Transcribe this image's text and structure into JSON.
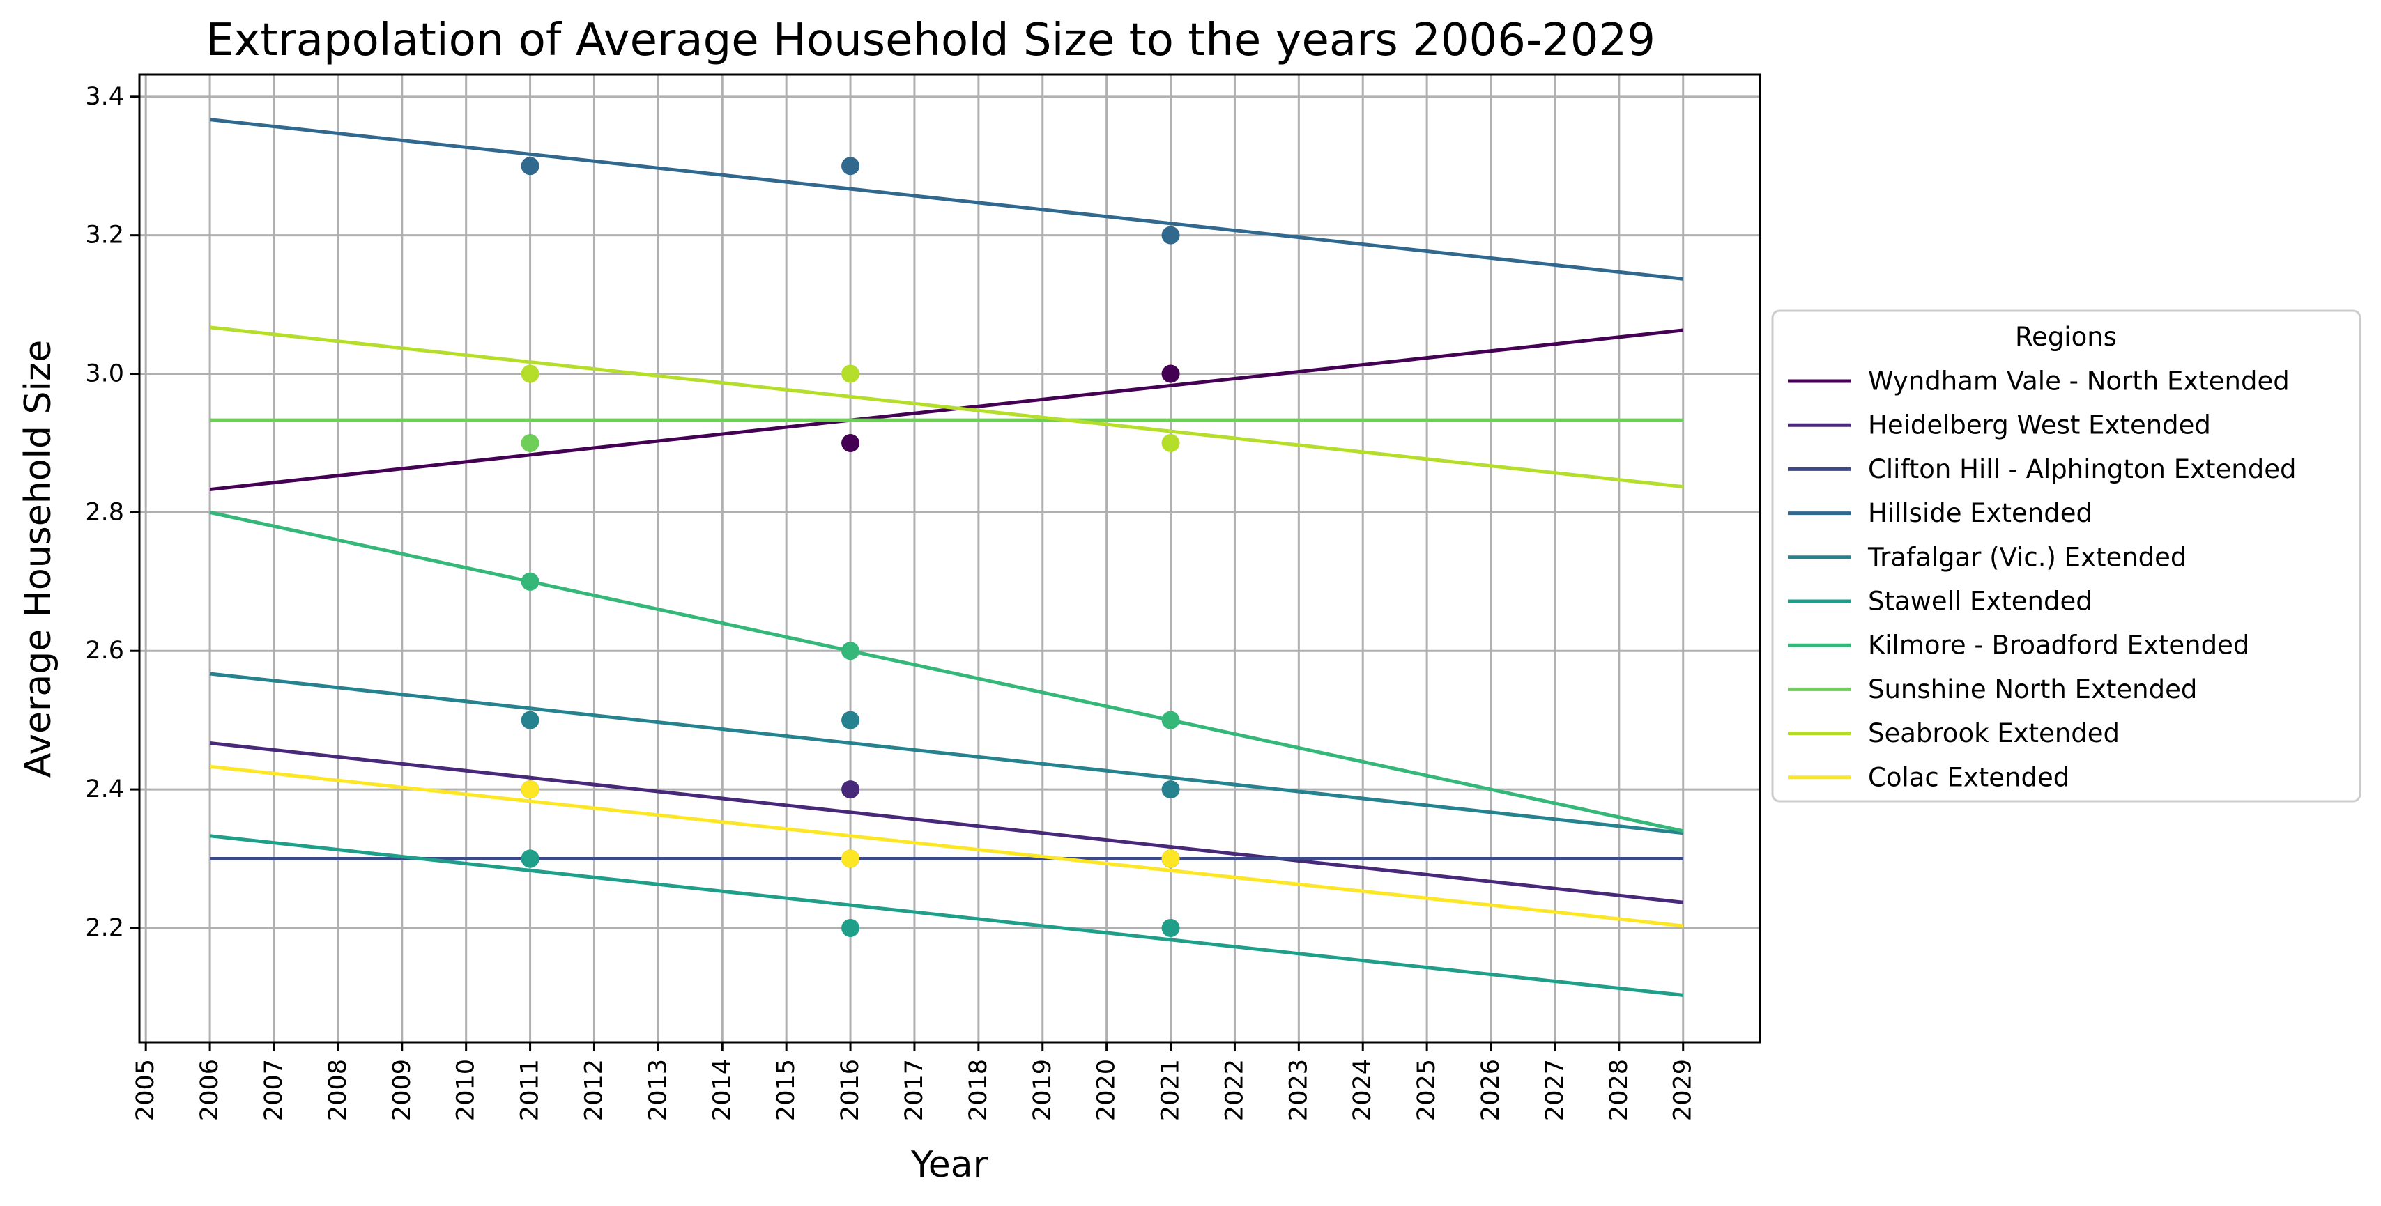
{
  "chart_data": {
    "type": "line",
    "title": "Extrapolation of Average Household Size to the years 2006-2029",
    "xlabel": "Year",
    "ylabel": "Average Household Size",
    "xlim": [
      2004.9,
      2030.2
    ],
    "ylim": [
      2.035,
      3.432
    ],
    "x_ticks": [
      2005,
      2006,
      2007,
      2008,
      2009,
      2010,
      2011,
      2012,
      2013,
      2014,
      2015,
      2016,
      2017,
      2018,
      2019,
      2020,
      2021,
      2022,
      2023,
      2024,
      2025,
      2026,
      2027,
      2028,
      2029
    ],
    "y_ticks": [
      2.2,
      2.4,
      2.6,
      2.8,
      3.0,
      3.2,
      3.4
    ],
    "grid": true,
    "legend": {
      "title": "Regions",
      "placement": "outside-right"
    },
    "series": [
      {
        "name": "Wyndham Vale - North Extended",
        "color": "#440154",
        "line": [
          [
            2006,
            2.833
          ],
          [
            2029,
            3.063
          ]
        ],
        "points": [
          [
            2016,
            2.9
          ],
          [
            2021,
            3.0
          ]
        ]
      },
      {
        "name": "Heidelberg West Extended",
        "color": "#482878",
        "line": [
          [
            2006,
            2.467
          ],
          [
            2029,
            2.237
          ]
        ],
        "points": [
          [
            2011,
            2.4
          ],
          [
            2016,
            2.4
          ],
          [
            2021,
            2.3
          ]
        ]
      },
      {
        "name": "Clifton Hill - Alphington Extended",
        "color": "#3e4989",
        "line": [
          [
            2006,
            2.3
          ],
          [
            2029,
            2.3
          ]
        ],
        "points": [
          [
            2011,
            2.3
          ],
          [
            2016,
            2.3
          ],
          [
            2021,
            2.3
          ]
        ]
      },
      {
        "name": "Hillside Extended",
        "color": "#31688e",
        "line": [
          [
            2006,
            3.367
          ],
          [
            2029,
            3.137
          ]
        ],
        "points": [
          [
            2011,
            3.3
          ],
          [
            2016,
            3.3
          ],
          [
            2021,
            3.2
          ]
        ]
      },
      {
        "name": "Trafalgar (Vic.) Extended",
        "color": "#26828e",
        "line": [
          [
            2006,
            2.567
          ],
          [
            2029,
            2.337
          ]
        ],
        "points": [
          [
            2011,
            2.5
          ],
          [
            2016,
            2.5
          ],
          [
            2021,
            2.4
          ]
        ]
      },
      {
        "name": "Stawell Extended",
        "color": "#1f9e89",
        "line": [
          [
            2006,
            2.333
          ],
          [
            2029,
            2.103
          ]
        ],
        "points": [
          [
            2011,
            2.3
          ],
          [
            2016,
            2.2
          ],
          [
            2021,
            2.2
          ]
        ]
      },
      {
        "name": "Kilmore - Broadford Extended",
        "color": "#35b779",
        "line": [
          [
            2006,
            2.8
          ],
          [
            2029,
            2.34
          ]
        ],
        "points": [
          [
            2011,
            2.7
          ],
          [
            2016,
            2.6
          ],
          [
            2021,
            2.5
          ]
        ]
      },
      {
        "name": "Sunshine North Extended",
        "color": "#6ece58",
        "line": [
          [
            2006,
            2.933
          ],
          [
            2029,
            2.933
          ]
        ],
        "points": [
          [
            2011,
            2.9
          ]
        ]
      },
      {
        "name": "Seabrook Extended",
        "color": "#b5de2b",
        "line": [
          [
            2006,
            3.067
          ],
          [
            2029,
            2.837
          ]
        ],
        "points": [
          [
            2011,
            3.0
          ],
          [
            2016,
            3.0
          ],
          [
            2021,
            2.9
          ]
        ]
      },
      {
        "name": "Colac Extended",
        "color": "#fde725",
        "line": [
          [
            2006,
            2.433
          ],
          [
            2029,
            2.203
          ]
        ],
        "points": [
          [
            2011,
            2.4
          ],
          [
            2016,
            2.3
          ],
          [
            2021,
            2.3
          ]
        ]
      }
    ]
  }
}
